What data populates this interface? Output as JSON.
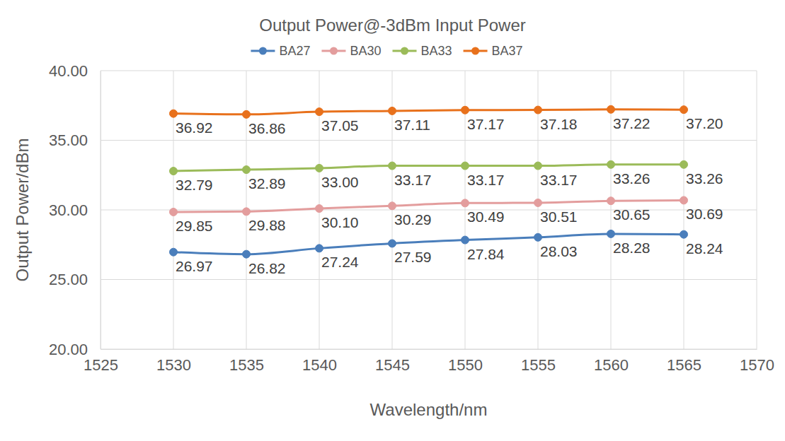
{
  "chart_data": {
    "type": "line",
    "title": "Output Power@-3dBm Input Power",
    "x_label": "Wavelength/nm",
    "y_label": "Output Power/dBm",
    "x": [
      1530,
      1535,
      1540,
      1545,
      1550,
      1555,
      1560,
      1565
    ],
    "series": [
      {
        "name": "BA27",
        "color": "#4a7ebb",
        "marker": "circle",
        "line_style": "solid",
        "values": [
          26.97,
          26.82,
          27.24,
          27.59,
          27.84,
          28.03,
          28.28,
          28.24
        ],
        "value_labels": [
          "26.97",
          "26.82",
          "27.24",
          "27.59",
          "27.84",
          "28.03",
          "28.28",
          "28.24"
        ]
      },
      {
        "name": "BA30",
        "color": "#e39d9d",
        "marker": "circle",
        "line_style": "solid",
        "values": [
          29.85,
          29.88,
          30.1,
          30.29,
          30.49,
          30.51,
          30.65,
          30.69
        ],
        "value_labels": [
          "29.85",
          "29.88",
          "30.10",
          "30.29",
          "30.49",
          "30.51",
          "30.65",
          "30.69"
        ]
      },
      {
        "name": "BA33",
        "color": "#9bbb59",
        "marker": "circle",
        "line_style": "solid",
        "values": [
          32.79,
          32.89,
          33.0,
          33.17,
          33.17,
          33.17,
          33.26,
          33.26
        ],
        "value_labels": [
          "32.79",
          "32.89",
          "33.00",
          "33.17",
          "33.17",
          "33.17",
          "33.26",
          "33.26"
        ]
      },
      {
        "name": "BA37",
        "color": "#e8711c",
        "marker": "circle",
        "line_style": "solid",
        "values": [
          36.92,
          36.86,
          37.05,
          37.11,
          37.17,
          37.18,
          37.22,
          37.2
        ],
        "value_labels": [
          "36.92",
          "36.86",
          "37.05",
          "37.11",
          "37.17",
          "37.18",
          "37.22",
          "37.20"
        ]
      }
    ],
    "xlim": [
      1525,
      1570
    ],
    "xticks": [
      1525,
      1530,
      1535,
      1540,
      1545,
      1550,
      1555,
      1560,
      1565,
      1570
    ],
    "ylim": [
      20,
      40
    ],
    "yticks": [
      {
        "value": 20,
        "label": "20.00"
      },
      {
        "value": 25,
        "label": "25.00"
      },
      {
        "value": 30,
        "label": "30.00"
      },
      {
        "value": 35,
        "label": "35.00"
      },
      {
        "value": 40,
        "label": "40.00"
      }
    ],
    "grid": true,
    "legend": "top",
    "data_labels": true
  }
}
